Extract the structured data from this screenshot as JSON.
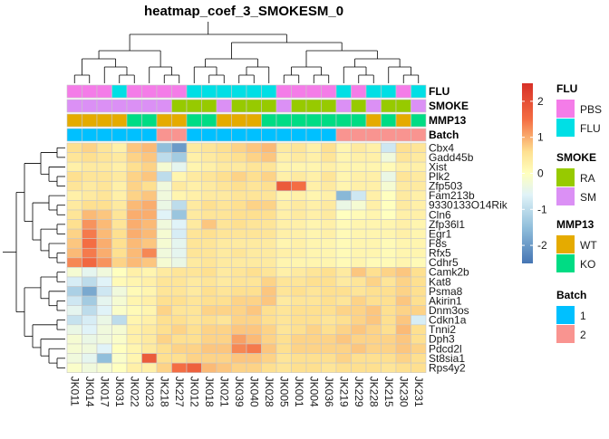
{
  "chart_data": {
    "type": "heatmap",
    "title": "heatmap_coef_3_SMOKESM_0",
    "rows": [
      "Cbx4",
      "Gadd45b",
      "Xist",
      "Plk2",
      "Zfp503",
      "Fam213b",
      "9330133O14Rik",
      "Cln6",
      "Zfp36l1",
      "Egr1",
      "F8s",
      "Rfx5",
      "Cdhr5",
      "Camk2b",
      "Kat8",
      "Psma8",
      "Akirin1",
      "Dnm3os",
      "Cdkn1a",
      "Tnni2",
      "Dph3",
      "Pdcd2l",
      "St8sia1",
      "Rps4y2"
    ],
    "columns": [
      "JK011",
      "JK014",
      "JK017",
      "JK031",
      "JK022",
      "JK023",
      "JK218",
      "JK227",
      "JK012",
      "JK018",
      "JK021",
      "JK039",
      "JK040",
      "JK028",
      "JK005",
      "JK001",
      "JK004",
      "JK036",
      "JK219",
      "JK229",
      "JK228",
      "JK215",
      "JK230",
      "JK231"
    ],
    "values": [
      [
        0.6,
        0.7,
        0.5,
        0.3,
        0.8,
        0.9,
        -1.5,
        -2.0,
        0.4,
        0.5,
        0.6,
        0.7,
        0.8,
        0.9,
        0.4,
        0.5,
        0.3,
        0.6,
        0.2,
        0.4,
        0.3,
        -0.8,
        0.6,
        0.5
      ],
      [
        0.5,
        0.6,
        0.5,
        0.4,
        0.7,
        0.8,
        -1.0,
        -1.3,
        0.3,
        0.4,
        0.5,
        0.6,
        0.7,
        0.8,
        0.3,
        0.4,
        0.3,
        0.5,
        0.2,
        0.3,
        0.3,
        -0.3,
        0.5,
        0.4
      ],
      [
        0.3,
        0.4,
        0.4,
        0.3,
        0.6,
        0.7,
        -0.2,
        -0.5,
        0.2,
        0.3,
        0.4,
        0.4,
        0.5,
        0.5,
        0.2,
        0.2,
        0.2,
        0.3,
        0.2,
        0.2,
        0.2,
        0.1,
        0.3,
        0.3
      ],
      [
        0.6,
        0.5,
        0.5,
        0.4,
        0.7,
        0.8,
        -1.0,
        0.2,
        0.4,
        0.5,
        0.6,
        0.7,
        0.6,
        0.7,
        0.3,
        0.4,
        0.3,
        0.5,
        0.2,
        0.3,
        0.3,
        -0.4,
        0.5,
        0.4
      ],
      [
        0.5,
        0.4,
        0.5,
        0.3,
        0.7,
        0.6,
        -0.3,
        0.4,
        0.3,
        0.4,
        0.5,
        0.6,
        0.5,
        0.6,
        1.8,
        1.5,
        0.3,
        0.4,
        0.2,
        0.3,
        0.3,
        -0.2,
        0.4,
        0.4
      ],
      [
        0.3,
        0.4,
        0.5,
        0.3,
        0.7,
        0.8,
        -0.3,
        0.2,
        0.3,
        0.4,
        0.4,
        0.5,
        0.5,
        0.5,
        0.2,
        0.3,
        0.2,
        0.3,
        -1.6,
        -0.8,
        0.3,
        0.0,
        0.4,
        0.3
      ],
      [
        0.4,
        0.6,
        0.6,
        0.4,
        0.9,
        1.0,
        -0.4,
        -1.0,
        0.4,
        0.6,
        0.5,
        0.6,
        0.7,
        0.7,
        0.3,
        0.4,
        0.3,
        0.4,
        -0.4,
        -0.2,
        0.3,
        0.0,
        0.4,
        0.3
      ],
      [
        0.5,
        0.9,
        0.8,
        0.5,
        1.0,
        1.0,
        -0.6,
        -1.4,
        0.4,
        0.5,
        0.5,
        0.6,
        0.6,
        0.6,
        0.3,
        0.4,
        0.3,
        0.4,
        0.0,
        0.1,
        0.2,
        0.0,
        0.3,
        0.3
      ],
      [
        0.6,
        1.2,
        0.9,
        0.5,
        1.0,
        0.9,
        -0.3,
        -0.6,
        0.4,
        0.8,
        0.5,
        0.6,
        0.5,
        0.5,
        0.3,
        0.3,
        0.2,
        0.3,
        0.1,
        0.2,
        0.2,
        0.2,
        0.3,
        0.2
      ],
      [
        0.7,
        1.4,
        0.9,
        0.6,
        1.0,
        0.9,
        -0.2,
        -0.7,
        0.5,
        0.6,
        0.5,
        0.5,
        0.5,
        0.5,
        0.3,
        0.3,
        0.2,
        0.3,
        0.1,
        0.2,
        0.2,
        0.2,
        0.3,
        0.2
      ],
      [
        0.8,
        1.5,
        1.0,
        0.6,
        0.9,
        0.8,
        -0.2,
        -0.5,
        0.5,
        0.5,
        0.4,
        0.4,
        0.4,
        0.4,
        0.2,
        0.3,
        0.2,
        0.2,
        0.1,
        0.2,
        0.2,
        0.1,
        0.2,
        0.2
      ],
      [
        0.9,
        1.4,
        1.0,
        0.6,
        0.9,
        1.3,
        -0.3,
        -0.5,
        0.5,
        0.5,
        0.4,
        0.5,
        0.4,
        0.4,
        0.3,
        0.3,
        0.2,
        0.2,
        0.1,
        0.2,
        0.2,
        0.1,
        0.2,
        0.2
      ],
      [
        1.3,
        1.6,
        1.2,
        0.7,
        0.9,
        0.8,
        -0.2,
        -0.4,
        0.4,
        0.5,
        0.4,
        0.4,
        0.4,
        0.4,
        0.2,
        0.2,
        0.2,
        0.2,
        0.1,
        0.2,
        0.1,
        0.1,
        0.2,
        0.1
      ],
      [
        -0.2,
        -0.5,
        -0.3,
        0.0,
        0.3,
        0.2,
        0.4,
        0.5,
        0.5,
        0.6,
        0.4,
        0.5,
        0.6,
        0.5,
        0.3,
        0.4,
        0.5,
        0.6,
        0.4,
        0.8,
        0.6,
        0.7,
        0.8,
        0.6
      ],
      [
        -0.7,
        -1.0,
        -0.6,
        0.1,
        0.2,
        0.3,
        0.5,
        0.5,
        0.4,
        0.5,
        0.4,
        0.5,
        0.5,
        0.7,
        0.5,
        0.5,
        0.6,
        0.6,
        0.4,
        0.5,
        0.7,
        0.5,
        0.7,
        0.6
      ],
      [
        -1.2,
        -1.8,
        -0.8,
        -0.3,
        0.1,
        0.2,
        0.5,
        0.5,
        0.4,
        0.6,
        0.5,
        0.6,
        0.6,
        0.8,
        0.5,
        0.6,
        0.5,
        0.6,
        0.6,
        0.5,
        0.6,
        0.6,
        0.7,
        0.6
      ],
      [
        -0.8,
        -1.3,
        -0.5,
        -0.2,
        0.2,
        0.3,
        0.6,
        0.6,
        0.5,
        0.6,
        0.6,
        0.7,
        0.7,
        0.8,
        0.4,
        0.5,
        0.5,
        0.6,
        0.5,
        0.7,
        0.6,
        0.6,
        0.8,
        0.6
      ],
      [
        -0.5,
        -1.0,
        -0.6,
        -0.1,
        0.1,
        0.2,
        0.7,
        0.5,
        0.5,
        0.7,
        0.7,
        0.7,
        0.8,
        0.6,
        0.5,
        0.6,
        0.6,
        0.6,
        0.7,
        0.7,
        0.8,
        0.6,
        0.7,
        0.7
      ],
      [
        -0.9,
        -0.7,
        -0.4,
        -1.0,
        0.2,
        0.3,
        0.6,
        0.6,
        0.5,
        0.6,
        0.5,
        0.7,
        0.7,
        0.6,
        0.5,
        0.6,
        0.6,
        0.5,
        0.6,
        0.7,
        0.8,
        0.6,
        0.8,
        -0.7
      ],
      [
        -0.4,
        -0.6,
        -0.3,
        -0.2,
        0.3,
        0.4,
        0.6,
        0.7,
        0.6,
        0.7,
        0.7,
        0.8,
        0.8,
        0.7,
        0.5,
        0.6,
        0.7,
        0.6,
        0.7,
        0.8,
        0.7,
        0.6,
        0.9,
        0.6
      ],
      [
        -0.2,
        -0.4,
        -0.3,
        -0.1,
        0.3,
        0.4,
        0.7,
        0.6,
        0.6,
        0.7,
        0.7,
        1.1,
        0.9,
        0.7,
        0.6,
        0.7,
        0.7,
        0.7,
        0.8,
        0.7,
        0.7,
        0.7,
        0.8,
        0.6
      ],
      [
        -0.2,
        -0.3,
        -0.6,
        0.0,
        0.2,
        0.4,
        0.6,
        0.7,
        0.7,
        0.8,
        0.8,
        1.3,
        1.4,
        0.8,
        0.6,
        0.7,
        0.7,
        0.7,
        0.7,
        0.8,
        0.7,
        0.7,
        0.8,
        0.7
      ],
      [
        -0.3,
        -0.5,
        -1.5,
        -0.1,
        0.2,
        1.8,
        0.6,
        0.6,
        0.7,
        0.7,
        0.7,
        0.8,
        0.8,
        0.7,
        0.5,
        0.6,
        0.6,
        0.6,
        0.7,
        0.6,
        0.6,
        0.6,
        0.7,
        0.6
      ],
      [
        -0.1,
        -0.3,
        -0.2,
        0.0,
        0.3,
        0.3,
        0.7,
        1.5,
        1.7,
        0.9,
        0.8,
        0.7,
        0.7,
        0.6,
        0.5,
        0.6,
        0.6,
        0.5,
        0.6,
        0.6,
        0.6,
        0.5,
        0.6,
        0.6
      ]
    ],
    "color_scale": {
      "min": -2.5,
      "max": 2.5,
      "low": "#4575b4",
      "mid": "#ffffbf",
      "high": "#d73027"
    },
    "colorbar_ticks": [
      2,
      1,
      0,
      -1,
      -2
    ],
    "annotations": {
      "order": [
        "FLU",
        "SMOKE",
        "MMP13",
        "Batch"
      ],
      "tracks": {
        "FLU": [
          "PBS",
          "PBS",
          "PBS",
          "FLU",
          "PBS",
          "PBS",
          "PBS",
          "PBS",
          "FLU",
          "FLU",
          "FLU",
          "FLU",
          "FLU",
          "FLU",
          "PBS",
          "PBS",
          "PBS",
          "PBS",
          "FLU",
          "PBS",
          "FLU",
          "FLU",
          "PBS",
          "FLU"
        ],
        "SMOKE": [
          "SM",
          "SM",
          "SM",
          "SM",
          "SM",
          "SM",
          "SM",
          "RA",
          "RA",
          "RA",
          "SM",
          "RA",
          "RA",
          "RA",
          "SM",
          "RA",
          "RA",
          "RA",
          "SM",
          "RA",
          "SM",
          "RA",
          "RA",
          "SM"
        ],
        "MMP13": [
          "WT",
          "WT",
          "WT",
          "WT",
          "KO",
          "KO",
          "WT",
          "WT",
          "KO",
          "KO",
          "WT",
          "WT",
          "WT",
          "KO",
          "KO",
          "KO",
          "KO",
          "KO",
          "KO",
          "KO",
          "WT",
          "KO",
          "WT",
          "KO"
        ],
        "Batch": [
          "1",
          "1",
          "1",
          "1",
          "1",
          "1",
          "2",
          "2",
          "1",
          "1",
          "1",
          "1",
          "1",
          "1",
          "1",
          "1",
          "1",
          "1",
          "2",
          "2",
          "2",
          "2",
          "2",
          "2"
        ]
      },
      "legends": {
        "FLU": [
          {
            "label": "PBS",
            "color": "#f47ce8"
          },
          {
            "label": "FLU",
            "color": "#00dfe5"
          }
        ],
        "SMOKE": [
          {
            "label": "RA",
            "color": "#97ca00"
          },
          {
            "label": "SM",
            "color": "#db90f5"
          }
        ],
        "MMP13": [
          {
            "label": "WT",
            "color": "#e5ab00"
          },
          {
            "label": "KO",
            "color": "#00dc84"
          }
        ],
        "Batch": [
          {
            "label": "1",
            "color": "#00c0ff"
          },
          {
            "label": "2",
            "color": "#f99490"
          }
        ]
      }
    }
  }
}
